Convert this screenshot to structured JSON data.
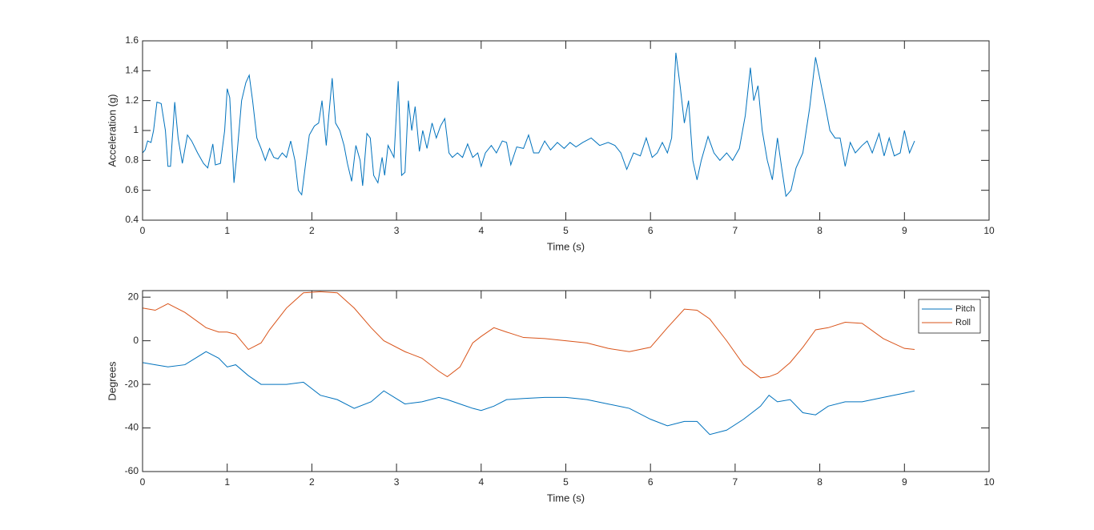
{
  "chart_data": [
    {
      "type": "line",
      "xlabel": "Time (s)",
      "ylabel": "Acceleration (g)",
      "xlim": [
        0,
        10
      ],
      "xticks": [
        0,
        1,
        2,
        3,
        4,
        5,
        6,
        7,
        8,
        9,
        10
      ],
      "ylim": [
        0.4,
        1.6
      ],
      "yticks": [
        0.4,
        0.6,
        0.8,
        1,
        1.2,
        1.4,
        1.6
      ],
      "grid": false,
      "x": [
        0,
        0.03,
        0.06,
        0.1,
        0.13,
        0.17,
        0.22,
        0.27,
        0.3,
        0.33,
        0.38,
        0.42,
        0.47,
        0.53,
        0.58,
        0.65,
        0.72,
        0.77,
        0.83,
        0.86,
        0.92,
        0.97,
        1.0,
        1.03,
        1.08,
        1.12,
        1.17,
        1.22,
        1.26,
        1.3,
        1.35,
        1.4,
        1.45,
        1.5,
        1.55,
        1.6,
        1.65,
        1.7,
        1.75,
        1.8,
        1.84,
        1.88,
        1.92,
        1.97,
        2.03,
        2.08,
        2.12,
        2.17,
        2.2,
        2.24,
        2.28,
        2.33,
        2.38,
        2.42,
        2.47,
        2.52,
        2.57,
        2.6,
        2.65,
        2.69,
        2.73,
        2.78,
        2.83,
        2.86,
        2.9,
        2.97,
        3.02,
        3.06,
        3.1,
        3.14,
        3.18,
        3.22,
        3.27,
        3.31,
        3.36,
        3.42,
        3.47,
        3.52,
        3.57,
        3.62,
        3.66,
        3.72,
        3.78,
        3.84,
        3.9,
        3.96,
        4.0,
        4.05,
        4.12,
        4.18,
        4.25,
        4.3,
        4.35,
        4.42,
        4.5,
        4.56,
        4.62,
        4.68,
        4.75,
        4.82,
        4.9,
        4.98,
        5.05,
        5.12,
        5.2,
        5.3,
        5.4,
        5.5,
        5.58,
        5.65,
        5.72,
        5.8,
        5.88,
        5.95,
        6.02,
        6.08,
        6.14,
        6.2,
        6.25,
        6.3,
        6.35,
        6.4,
        6.45,
        6.5,
        6.55,
        6.6,
        6.68,
        6.75,
        6.82,
        6.9,
        6.97,
        7.05,
        7.12,
        7.18,
        7.22,
        7.27,
        7.32,
        7.38,
        7.44,
        7.5,
        7.55,
        7.6,
        7.66,
        7.72,
        7.8,
        7.88,
        7.95,
        8.0,
        8.06,
        8.12,
        8.18,
        8.24,
        8.3,
        8.36,
        8.42,
        8.5,
        8.56,
        8.62,
        8.7,
        8.76,
        8.82,
        8.88,
        8.95,
        9.0,
        9.06,
        9.12
      ],
      "series": [
        {
          "color": "#0072bd",
          "values": [
            0.85,
            0.87,
            0.93,
            0.92,
            1.0,
            1.19,
            1.18,
            1.0,
            0.76,
            0.76,
            1.19,
            0.95,
            0.78,
            0.97,
            0.93,
            0.85,
            0.78,
            0.75,
            0.91,
            0.77,
            0.78,
            1.0,
            1.28,
            1.22,
            0.65,
            0.87,
            1.2,
            1.32,
            1.37,
            1.2,
            0.95,
            0.88,
            0.8,
            0.88,
            0.82,
            0.81,
            0.85,
            0.82,
            0.93,
            0.8,
            0.6,
            0.57,
            0.75,
            0.97,
            1.03,
            1.05,
            1.2,
            0.9,
            1.1,
            1.35,
            1.05,
            1.0,
            0.9,
            0.78,
            0.66,
            0.9,
            0.8,
            0.63,
            0.98,
            0.95,
            0.7,
            0.65,
            0.82,
            0.7,
            0.9,
            0.82,
            1.33,
            0.7,
            0.72,
            1.2,
            1.0,
            1.16,
            0.86,
            1.0,
            0.88,
            1.05,
            0.95,
            1.03,
            1.08,
            0.85,
            0.82,
            0.85,
            0.82,
            0.91,
            0.82,
            0.85,
            0.76,
            0.85,
            0.9,
            0.85,
            0.93,
            0.92,
            0.77,
            0.89,
            0.88,
            0.97,
            0.85,
            0.85,
            0.93,
            0.87,
            0.92,
            0.88,
            0.92,
            0.89,
            0.92,
            0.95,
            0.9,
            0.92,
            0.9,
            0.85,
            0.74,
            0.85,
            0.83,
            0.95,
            0.82,
            0.85,
            0.92,
            0.85,
            0.95,
            1.52,
            1.3,
            1.05,
            1.2,
            0.8,
            0.67,
            0.8,
            0.96,
            0.85,
            0.8,
            0.85,
            0.8,
            0.88,
            1.1,
            1.42,
            1.2,
            1.3,
            1.0,
            0.8,
            0.67,
            0.95,
            0.75,
            0.56,
            0.6,
            0.75,
            0.85,
            1.15,
            1.49,
            1.35,
            1.18,
            1.0,
            0.95,
            0.95,
            0.76,
            0.92,
            0.85,
            0.9,
            0.93,
            0.85,
            0.98,
            0.83,
            0.95,
            0.83,
            0.85,
            1.0,
            0.85,
            0.93
          ]
        }
      ]
    },
    {
      "type": "line",
      "xlabel": "Time (s)",
      "ylabel": "Degrees",
      "xlim": [
        0,
        10
      ],
      "xticks": [
        0,
        1,
        2,
        3,
        4,
        5,
        6,
        7,
        8,
        9,
        10
      ],
      "ylim": [
        -60,
        23
      ],
      "yticks": [
        -60,
        -40,
        -20,
        0,
        20
      ],
      "grid": false,
      "legend": "northeast",
      "x": [
        0,
        0.15,
        0.3,
        0.5,
        0.75,
        0.9,
        1.0,
        1.1,
        1.25,
        1.4,
        1.5,
        1.7,
        1.9,
        2.1,
        2.3,
        2.5,
        2.7,
        2.85,
        3.1,
        3.3,
        3.5,
        3.6,
        3.75,
        3.9,
        4.0,
        4.15,
        4.3,
        4.5,
        4.75,
        5.0,
        5.25,
        5.5,
        5.75,
        6.0,
        6.2,
        6.4,
        6.55,
        6.7,
        6.9,
        7.1,
        7.3,
        7.4,
        7.5,
        7.65,
        7.8,
        7.95,
        8.1,
        8.3,
        8.5,
        8.75,
        9.0,
        9.12
      ],
      "series": [
        {
          "name": "Pitch",
          "color": "#0072bd",
          "values": [
            -10,
            -11,
            -12,
            -11,
            -5,
            -8,
            -12,
            -11,
            -16,
            -20,
            -20,
            -20,
            -19,
            -25,
            -27,
            -31,
            -28,
            -23,
            -29,
            -28,
            -26,
            -27,
            -29,
            -31,
            -32,
            -30,
            -27,
            -26.5,
            -26,
            -26,
            -27,
            -29,
            -31,
            -36,
            -39,
            -37,
            -37,
            -43,
            -41,
            -36,
            -30,
            -25,
            -28,
            -27,
            -33,
            -34,
            -30,
            -28,
            -28,
            -26,
            -24,
            -23
          ]
        },
        {
          "name": "Roll",
          "color": "#d95319",
          "values": [
            15,
            14,
            17,
            13,
            6,
            4,
            4,
            3,
            -4,
            -1,
            5,
            15,
            22,
            22.5,
            22,
            15,
            6,
            0,
            -5,
            -8,
            -14,
            -16.5,
            -12,
            -1,
            2,
            6,
            4,
            1.5,
            1,
            0,
            -1,
            -3.5,
            -5,
            -3,
            6,
            14.5,
            14,
            10,
            0,
            -11,
            -17,
            -16.5,
            -15,
            -10,
            -3,
            5,
            6,
            8.5,
            8,
            1,
            -3.5,
            -4
          ]
        }
      ]
    }
  ]
}
